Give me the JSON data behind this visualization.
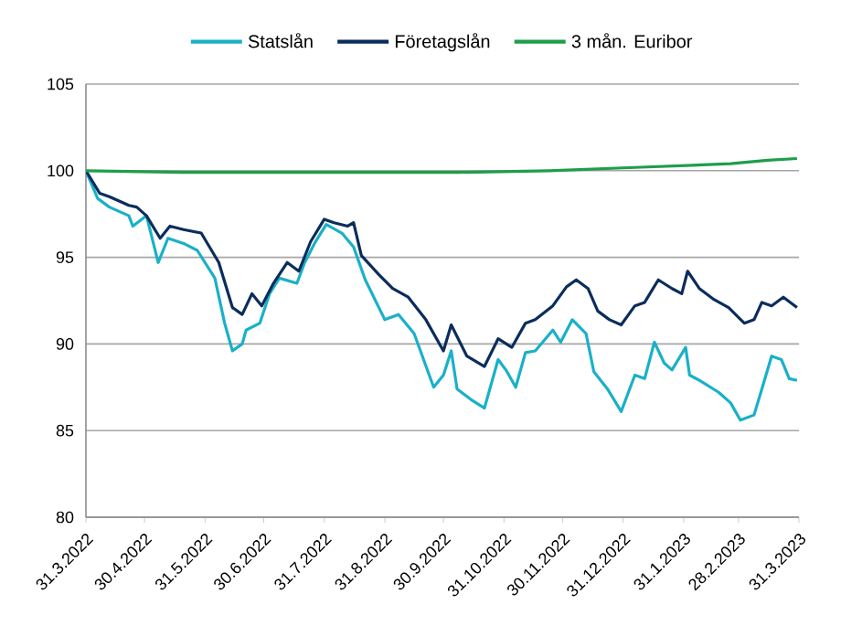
{
  "chart_data": {
    "type": "line",
    "ylim": [
      80,
      105
    ],
    "yticks": [
      80,
      85,
      90,
      95,
      100,
      105
    ],
    "xlim": [
      "2022-03-31",
      "2023-03-31"
    ],
    "xticks": [
      {
        "value": "2022-03-31",
        "label": "31.3.2022"
      },
      {
        "value": "2022-04-30",
        "label": "30.4.2022"
      },
      {
        "value": "2022-05-31",
        "label": "31.5.2022"
      },
      {
        "value": "2022-06-30",
        "label": "30.6.2022"
      },
      {
        "value": "2022-07-31",
        "label": "31.7.2022"
      },
      {
        "value": "2022-08-31",
        "label": "31.8.2022"
      },
      {
        "value": "2022-09-30",
        "label": "30.9.2022"
      },
      {
        "value": "2022-10-31",
        "label": "31.10.2022"
      },
      {
        "value": "2022-11-30",
        "label": "30.11.2022"
      },
      {
        "value": "2022-12-31",
        "label": "31.12.2022"
      },
      {
        "value": "2023-01-31",
        "label": "31.1.2023"
      },
      {
        "value": "2023-02-28",
        "label": "28.2.2023"
      },
      {
        "value": "2023-03-31",
        "label": "31.3.2023"
      }
    ],
    "grid": "y",
    "legend": "top",
    "marker": "none",
    "line_style": "solid",
    "series": [
      {
        "name": "Statslån",
        "color": "#1ab0c8",
        "x": [
          "2022-03-31",
          "2022-04-06",
          "2022-04-12",
          "2022-04-22",
          "2022-04-24",
          "2022-05-01",
          "2022-05-07",
          "2022-05-12",
          "2022-05-20",
          "2022-05-27",
          "2022-06-05",
          "2022-06-10",
          "2022-06-14",
          "2022-06-19",
          "2022-06-21",
          "2022-06-28",
          "2022-07-03",
          "2022-07-08",
          "2022-07-17",
          "2022-07-21",
          "2022-07-26",
          "2022-08-01",
          "2022-08-09",
          "2022-08-15",
          "2022-08-21",
          "2022-08-31",
          "2022-09-07",
          "2022-09-15",
          "2022-09-25",
          "2022-09-30",
          "2022-10-04",
          "2022-10-07",
          "2022-10-14",
          "2022-10-21",
          "2022-10-28",
          "2022-11-01",
          "2022-11-06",
          "2022-11-11",
          "2022-11-16",
          "2022-11-25",
          "2022-11-29",
          "2022-12-05",
          "2022-12-12",
          "2022-12-16",
          "2022-12-23",
          "2022-12-30",
          "2023-01-06",
          "2023-01-11",
          "2023-01-16",
          "2023-01-21",
          "2023-01-25",
          "2023-02-01",
          "2023-02-03",
          "2023-02-08",
          "2023-02-18",
          "2023-02-24",
          "2023-03-01",
          "2023-03-08",
          "2023-03-12",
          "2023-03-17",
          "2023-03-22",
          "2023-03-26",
          "2023-03-30"
        ],
        "values": [
          100,
          98.4,
          97.9,
          97.4,
          96.8,
          97.4,
          94.7,
          96.1,
          95.8,
          95.4,
          93.8,
          91.2,
          89.6,
          90.0,
          90.8,
          91.2,
          92.9,
          93.8,
          93.5,
          94.7,
          95.8,
          96.9,
          96.4,
          95.6,
          93.7,
          91.4,
          91.7,
          90.6,
          87.5,
          88.2,
          89.6,
          87.4,
          86.8,
          86.3,
          89.1,
          88.5,
          87.5,
          89.5,
          89.6,
          90.8,
          90.1,
          91.4,
          90.6,
          88.4,
          87.4,
          86.1,
          88.2,
          88.0,
          90.1,
          88.9,
          88.5,
          89.8,
          88.2,
          87.9,
          87.2,
          86.6,
          85.6,
          85.9,
          87.4,
          89.3,
          89.1,
          88.0,
          87.9
        ]
      },
      {
        "name": "Företagslån",
        "color": "#0b2d5c",
        "x": [
          "2022-03-31",
          "2022-04-07",
          "2022-04-12",
          "2022-04-22",
          "2022-04-26",
          "2022-05-01",
          "2022-05-08",
          "2022-05-13",
          "2022-05-20",
          "2022-05-29",
          "2022-06-07",
          "2022-06-14",
          "2022-06-19",
          "2022-06-24",
          "2022-06-29",
          "2022-07-05",
          "2022-07-12",
          "2022-07-18",
          "2022-07-24",
          "2022-07-31",
          "2022-08-05",
          "2022-08-12",
          "2022-08-15",
          "2022-08-19",
          "2022-08-28",
          "2022-09-04",
          "2022-09-12",
          "2022-09-21",
          "2022-09-30",
          "2022-10-04",
          "2022-10-12",
          "2022-10-21",
          "2022-10-28",
          "2022-11-04",
          "2022-11-11",
          "2022-11-16",
          "2022-11-25",
          "2022-12-02",
          "2022-12-07",
          "2022-12-13",
          "2022-12-18",
          "2022-12-24",
          "2022-12-30",
          "2023-01-06",
          "2023-01-11",
          "2023-01-18",
          "2023-01-25",
          "2023-01-30",
          "2023-02-02",
          "2023-02-08",
          "2023-02-15",
          "2023-02-23",
          "2023-03-03",
          "2023-03-08",
          "2023-03-12",
          "2023-03-17",
          "2023-03-23",
          "2023-03-30"
        ],
        "values": [
          100,
          98.7,
          98.5,
          98.0,
          97.9,
          97.4,
          96.1,
          96.8,
          96.6,
          96.4,
          94.7,
          92.1,
          91.7,
          92.9,
          92.2,
          93.5,
          94.7,
          94.2,
          95.9,
          97.2,
          97.0,
          96.8,
          97.0,
          95.1,
          94.0,
          93.2,
          92.7,
          91.4,
          89.6,
          91.1,
          89.3,
          88.7,
          90.3,
          89.8,
          91.2,
          91.4,
          92.2,
          93.3,
          93.7,
          93.2,
          91.9,
          91.4,
          91.1,
          92.2,
          92.4,
          93.7,
          93.2,
          92.9,
          94.2,
          93.2,
          92.6,
          92.1,
          91.2,
          91.4,
          92.4,
          92.2,
          92.7,
          92.1
        ]
      },
      {
        "name": "3 mån. Euribor",
        "color": "#1e9e4a",
        "x": [
          "2022-03-31",
          "2022-05-20",
          "2022-07-05",
          "2022-08-21",
          "2022-10-07",
          "2022-11-23",
          "2023-01-09",
          "2023-02-24",
          "2023-03-15",
          "2023-03-30"
        ],
        "values": [
          100,
          99.9,
          99.9,
          99.9,
          99.9,
          100,
          100.2,
          100.4,
          100.6,
          100.7
        ]
      }
    ]
  }
}
